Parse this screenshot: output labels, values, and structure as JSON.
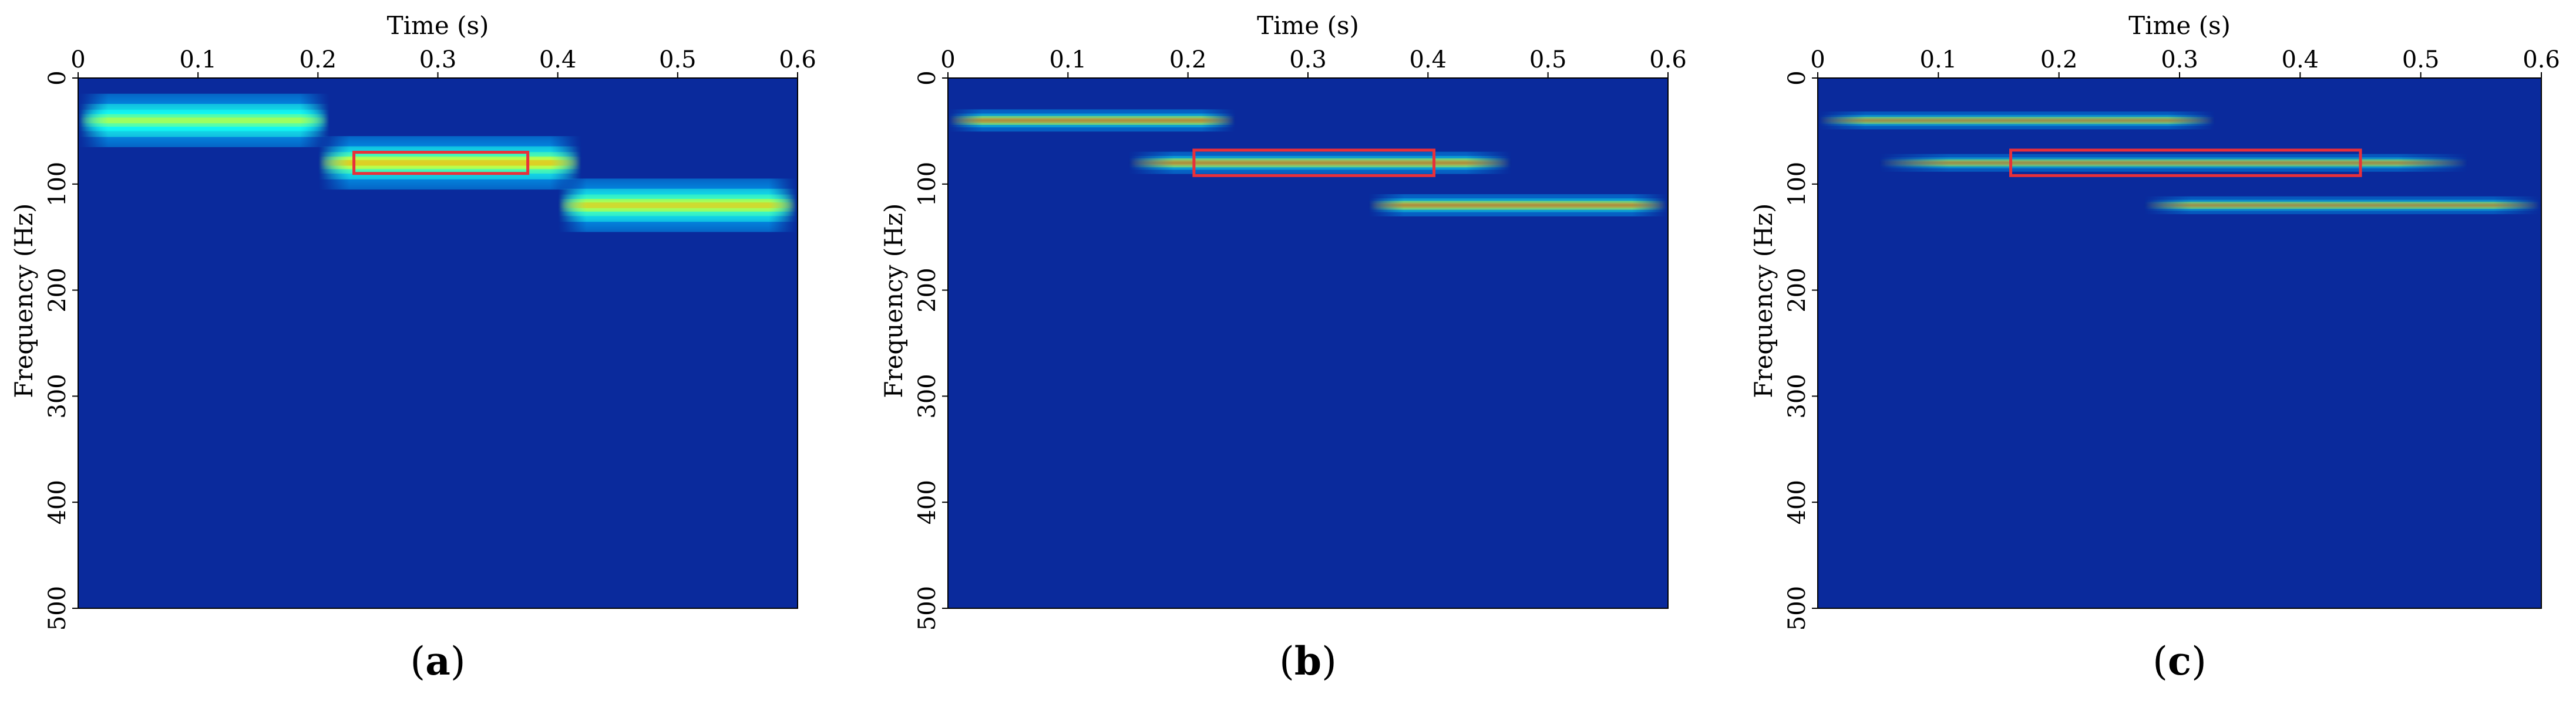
{
  "chart_data": [
    {
      "type": "heatmap",
      "panel_label": "a",
      "xlabel": "Time (s)",
      "ylabel": "Frequency (Hz)",
      "xlim": [
        0,
        0.6
      ],
      "ylim": [
        0,
        500
      ],
      "x_ticks": [
        "0",
        "0.1",
        "0.2",
        "0.3",
        "0.4",
        "0.5",
        "0.6"
      ],
      "y_ticks": [
        "0",
        "100",
        "200",
        "300",
        "400",
        "500"
      ],
      "components": [
        {
          "t_start": 0.0,
          "t_end": 0.21,
          "freq": 40,
          "bandwidth": 12,
          "intensity": 0.62
        },
        {
          "t_start": 0.2,
          "t_end": 0.42,
          "freq": 80,
          "bandwidth": 12,
          "intensity": 0.75
        },
        {
          "t_start": 0.4,
          "t_end": 0.6,
          "freq": 120,
          "bandwidth": 12,
          "intensity": 0.72
        }
      ],
      "highlight_box": {
        "t_start": 0.23,
        "t_end": 0.375,
        "f_start": 70,
        "f_end": 90
      },
      "colors": {
        "background": "#0a2a9c",
        "box": "#e8303a"
      }
    },
    {
      "type": "heatmap",
      "panel_label": "b",
      "xlabel": "Time (s)",
      "ylabel": "Frequency (Hz)",
      "xlim": [
        0,
        0.6
      ],
      "ylim": [
        0,
        500
      ],
      "x_ticks": [
        "0",
        "0.1",
        "0.2",
        "0.3",
        "0.4",
        "0.5",
        "0.6"
      ],
      "y_ticks": [
        "0",
        "100",
        "200",
        "300",
        "400",
        "500"
      ],
      "components": [
        {
          "t_start": 0.0,
          "t_end": 0.24,
          "freq": 40,
          "bandwidth": 5,
          "intensity": 0.95
        },
        {
          "t_start": 0.15,
          "t_end": 0.47,
          "freq": 80,
          "bandwidth": 5,
          "intensity": 0.95
        },
        {
          "t_start": 0.35,
          "t_end": 0.6,
          "freq": 120,
          "bandwidth": 5,
          "intensity": 0.95
        }
      ],
      "highlight_box": {
        "t_start": 0.205,
        "t_end": 0.405,
        "f_start": 68,
        "f_end": 92
      },
      "colors": {
        "background": "#0a2a9c",
        "box": "#e8303a"
      }
    },
    {
      "type": "heatmap",
      "panel_label": "c",
      "xlabel": "Time (s)",
      "ylabel": "Frequency (Hz)",
      "xlim": [
        0,
        0.6
      ],
      "ylim": [
        0,
        500
      ],
      "x_ticks": [
        "0",
        "0.1",
        "0.2",
        "0.3",
        "0.4",
        "0.5",
        "0.6"
      ],
      "y_ticks": [
        "0",
        "100",
        "200",
        "300",
        "400",
        "500"
      ],
      "components": [
        {
          "t_start": 0.0,
          "t_end": 0.33,
          "freq": 40,
          "bandwidth": 4,
          "intensity": 0.95
        },
        {
          "t_start": 0.05,
          "t_end": 0.54,
          "freq": 80,
          "bandwidth": 4,
          "intensity": 0.95
        },
        {
          "t_start": 0.27,
          "t_end": 0.6,
          "freq": 120,
          "bandwidth": 4,
          "intensity": 0.95
        }
      ],
      "highlight_box": {
        "t_start": 0.16,
        "t_end": 0.45,
        "f_start": 68,
        "f_end": 92
      },
      "colors": {
        "background": "#0a2a9c",
        "box": "#e8303a"
      }
    }
  ]
}
